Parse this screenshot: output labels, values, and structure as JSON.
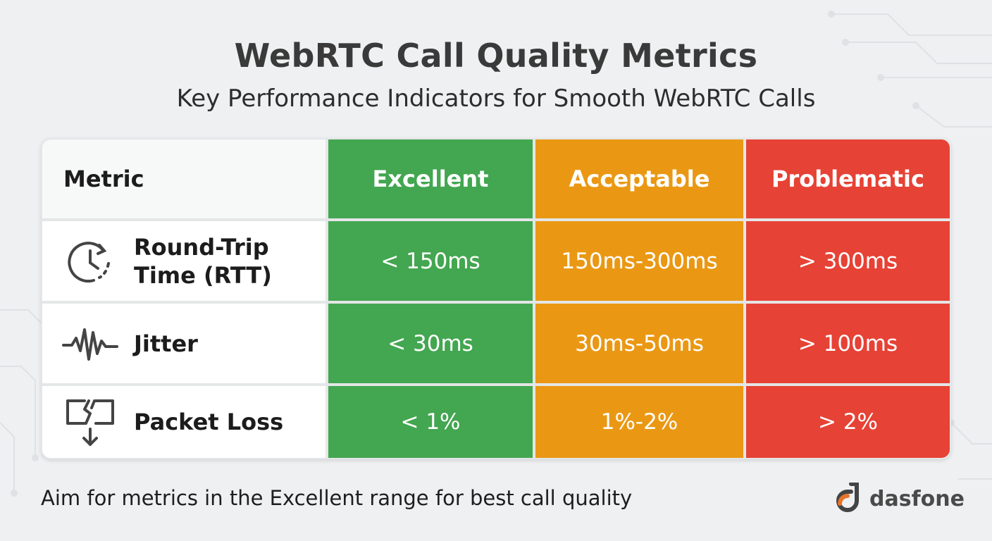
{
  "title": "WebRTC Call Quality Metrics",
  "subtitle": "Key Performance Indicators for Smooth WebRTC Calls",
  "table": {
    "headers": [
      "Metric",
      "Excellent",
      "Acceptable",
      "Problematic"
    ],
    "rows": [
      {
        "metric": "Round-Trip\nTime (RTT)",
        "icon": "clock-refresh-icon",
        "excellent": "< 150ms",
        "acceptable": "150ms-300ms",
        "problematic": "> 300ms"
      },
      {
        "metric": "Jitter",
        "icon": "waveform-icon",
        "excellent": "< 30ms",
        "acceptable": "30ms-50ms",
        "problematic": "> 100ms"
      },
      {
        "metric": "Packet Loss",
        "icon": "broken-packet-icon",
        "excellent": "< 1%",
        "acceptable": "1%-2%",
        "problematic": "> 2%"
      }
    ]
  },
  "colors": {
    "excellent": "#43a650",
    "acceptable": "#ea9814",
    "problematic": "#e64235"
  },
  "footer": "Aim for metrics in the Excellent range for best call quality",
  "brand": "dasfone"
}
